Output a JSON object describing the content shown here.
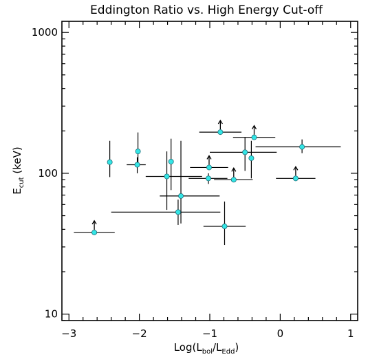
{
  "chart_data": {
    "type": "scatter",
    "title": "Eddington Ratio vs. High Energy Cut-off",
    "xlabel": {
      "main": "Log(L",
      "sub1": "bol",
      "mid": "/L",
      "sub2": "Edd",
      "close": ")"
    },
    "ylabel": {
      "main": "E",
      "sub": "cut",
      "unit": " (keV)"
    },
    "x_scale": "linear",
    "y_scale": "log",
    "xlim": [
      -3.1,
      1.1
    ],
    "ylim": [
      9,
      1200
    ],
    "x_ticks": [
      -3,
      -2,
      -1,
      0,
      1
    ],
    "x_tick_labels": [
      "−3",
      "−2",
      "−1",
      "0",
      "1"
    ],
    "y_ticks": [
      10,
      100,
      1000
    ],
    "y_tick_labels": [
      "10",
      "100",
      "1000"
    ],
    "grid": false,
    "colors": {
      "marker_fill": "#33e5e5",
      "marker_edge": "#1f6f7a",
      "ink": "#000000"
    },
    "points": [
      {
        "x": -2.64,
        "y": 38,
        "xerr": [
          0.29,
          0.29
        ],
        "yerr": null,
        "lower_limit": true
      },
      {
        "x": -2.42,
        "y": 120,
        "xerr": null,
        "yerr": [
          26,
          50
        ],
        "lower_limit": false
      },
      {
        "x": -2.02,
        "y": 143,
        "xerr": null,
        "yerr": [
          23,
          52
        ],
        "lower_limit": false
      },
      {
        "x": -2.03,
        "y": 115,
        "xerr": [
          0.15,
          0.12
        ],
        "yerr": [
          15,
          15
        ],
        "lower_limit": false
      },
      {
        "x": -1.55,
        "y": 121,
        "xerr": null,
        "yerr": [
          45,
          55
        ],
        "lower_limit": false
      },
      {
        "x": -1.61,
        "y": 95,
        "xerr": [
          0.3,
          0.5
        ],
        "yerr": [
          40,
          48
        ],
        "lower_limit": false
      },
      {
        "x": -1.41,
        "y": 69,
        "xerr": [
          0.3,
          0.55
        ],
        "yerr": [
          25,
          101
        ],
        "lower_limit": false
      },
      {
        "x": -1.45,
        "y": 53,
        "xerr": [
          0.95,
          0.6
        ],
        "yerr": [
          10,
          12
        ],
        "lower_limit": false
      },
      {
        "x": -0.85,
        "y": 196,
        "xerr": [
          0.3,
          0.3
        ],
        "yerr": null,
        "lower_limit": true
      },
      {
        "x": -1.01,
        "y": 110,
        "xerr": [
          0.27,
          0.27
        ],
        "yerr": null,
        "lower_limit": true
      },
      {
        "x": -1.02,
        "y": 92,
        "xerr": [
          0.28,
          0.27
        ],
        "yerr": [
          8,
          8
        ],
        "lower_limit": false
      },
      {
        "x": -0.66,
        "y": 90,
        "xerr": [
          0.28,
          0.27
        ],
        "yerr": null,
        "lower_limit": true
      },
      {
        "x": -0.79,
        "y": 42,
        "xerr": [
          0.3,
          0.3
        ],
        "yerr": [
          11,
          21
        ],
        "lower_limit": false
      },
      {
        "x": -0.5,
        "y": 141,
        "xerr": [
          0.5,
          0.45
        ],
        "yerr": [
          37,
          39
        ],
        "lower_limit": false
      },
      {
        "x": -0.41,
        "y": 128,
        "xerr": null,
        "yerr": [
          36,
          42
        ],
        "lower_limit": false
      },
      {
        "x": -0.37,
        "y": 180,
        "xerr": [
          0.3,
          0.3
        ],
        "yerr": null,
        "lower_limit": true
      },
      {
        "x": 0.22,
        "y": 92,
        "xerr": [
          0.28,
          0.28
        ],
        "yerr": null,
        "lower_limit": true
      },
      {
        "x": 0.31,
        "y": 154,
        "xerr": [
          0.66,
          0.55
        ],
        "yerr": [
          15,
          20
        ],
        "lower_limit": false
      }
    ]
  }
}
